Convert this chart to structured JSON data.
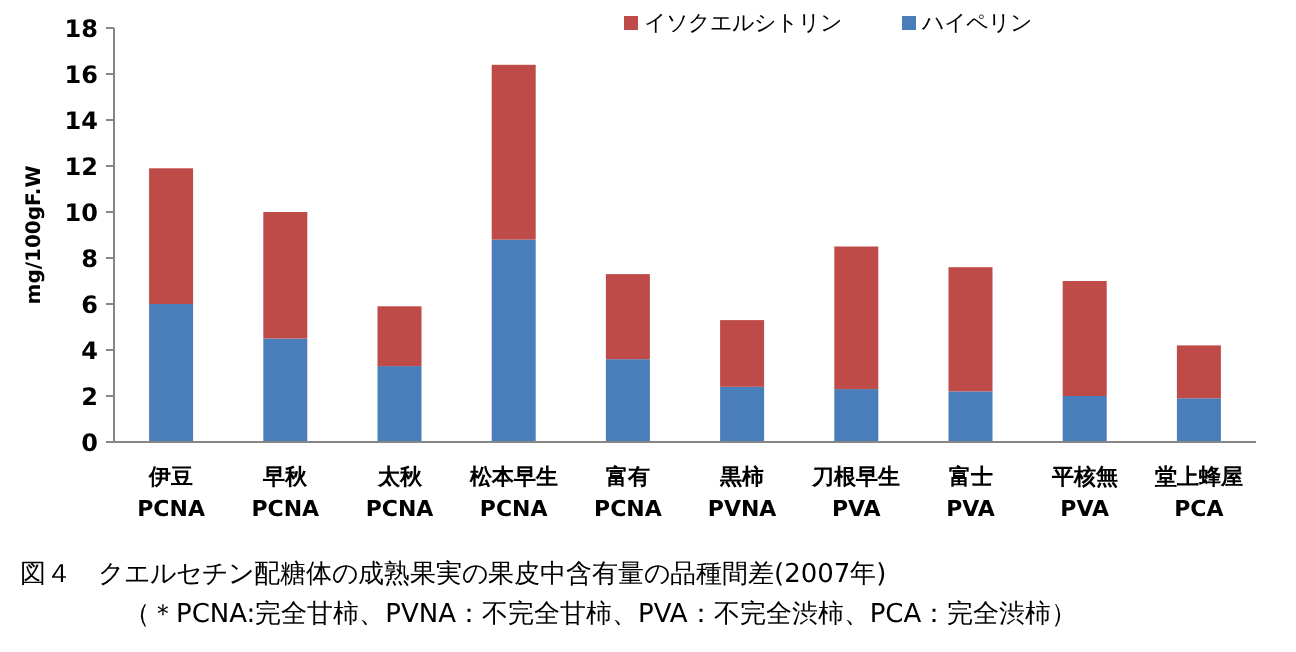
{
  "chart_data": {
    "type": "bar",
    "stacked": true,
    "title": "図４　クエルセチン配糖体の成熟果実の果皮中含有量の品種間差(2007年)",
    "subtitle": "（＊PCNA:完全甘柿、PVNA：不完全甘柿、PVA：不完全渋柿、PCA：完全渋柿）",
    "ylabel": "mg/100gF.W",
    "categories": [
      "伊豆\nPCNA",
      "早秋\nPCNA",
      "太秋\nPCNA",
      "松本早生\nPCNA",
      "富有\nPCNA",
      "黒柿\nPVNA",
      "刀根早生\nPVA",
      "富士\nPVA",
      "平核無\nPVA",
      "堂上蜂屋\nPCA"
    ],
    "series": [
      {
        "name": "ハイペリン",
        "color": "#4a7ebb",
        "values": [
          6.0,
          4.5,
          3.3,
          8.8,
          3.6,
          2.4,
          2.3,
          2.2,
          2.0,
          1.9
        ]
      },
      {
        "name": "イソクエルシトリン",
        "color": "#be4b48",
        "values": [
          5.9,
          5.5,
          2.6,
          7.6,
          3.7,
          2.9,
          6.2,
          5.4,
          5.0,
          2.3
        ]
      }
    ],
    "ylim": [
      0,
      18
    ],
    "yticks": [
      0,
      2,
      4,
      6,
      8,
      10,
      12,
      14,
      16,
      18
    ],
    "legend": "top",
    "grid": false
  }
}
